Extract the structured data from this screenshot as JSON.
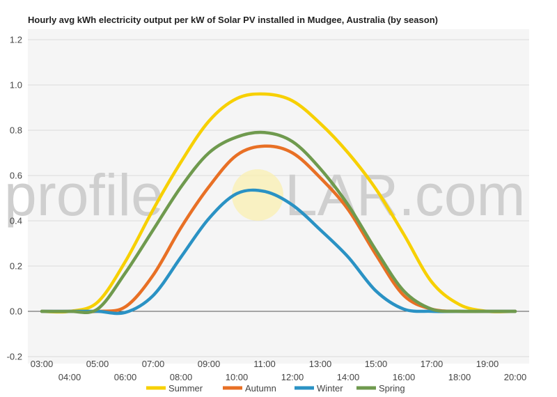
{
  "watermark": {
    "left": "profile",
    "right": "LAR.com"
  },
  "chart_data": {
    "type": "line",
    "title": "Hourly avg kWh electricity output per kW of Solar PV installed in Mudgee, Australia (by season)",
    "xlabel": "",
    "ylabel": "",
    "ylim": [
      -0.2,
      1.2
    ],
    "yticks": [
      -0.2,
      0,
      0.2,
      0.4,
      0.6,
      0.8,
      1.0,
      1.2
    ],
    "ytick_labels": [
      "-0.2",
      "0.0",
      "0.2",
      "0.4",
      "0.6",
      "0.8",
      "1.0",
      "1.2"
    ],
    "x_hours": [
      3,
      4,
      5,
      6,
      7,
      8,
      9,
      10,
      11,
      12,
      13,
      14,
      15,
      16,
      17,
      18,
      19,
      20
    ],
    "x_labels": [
      "03:00",
      "04:00",
      "05:00",
      "06:00",
      "07:00",
      "08:00",
      "09:00",
      "10:00",
      "11:00",
      "12:00",
      "13:00",
      "14:00",
      "15:00",
      "16:00",
      "17:00",
      "18:00",
      "19:00",
      "20:00"
    ],
    "grid": true,
    "background": "#f5f5f5",
    "legend_position": "bottom",
    "series": [
      {
        "name": "Summer",
        "color": "#f7d000",
        "values": [
          0,
          0,
          0.04,
          0.22,
          0.45,
          0.66,
          0.84,
          0.94,
          0.96,
          0.93,
          0.83,
          0.7,
          0.54,
          0.34,
          0.13,
          0.03,
          0,
          0
        ]
      },
      {
        "name": "Autumn",
        "color": "#e87025",
        "values": [
          0,
          0,
          0,
          0.02,
          0.16,
          0.37,
          0.55,
          0.69,
          0.73,
          0.7,
          0.59,
          0.45,
          0.25,
          0.07,
          0.01,
          0,
          0,
          0
        ]
      },
      {
        "name": "Winter",
        "color": "#2a92c4",
        "values": [
          0,
          0,
          0,
          -0.005,
          0.07,
          0.24,
          0.41,
          0.52,
          0.53,
          0.47,
          0.36,
          0.24,
          0.09,
          0.01,
          0,
          0,
          0,
          0
        ]
      },
      {
        "name": "Spring",
        "color": "#6f9a4e",
        "values": [
          0,
          0,
          0.01,
          0.17,
          0.36,
          0.55,
          0.7,
          0.77,
          0.79,
          0.75,
          0.63,
          0.47,
          0.27,
          0.09,
          0.01,
          0,
          0,
          0
        ]
      }
    ]
  }
}
